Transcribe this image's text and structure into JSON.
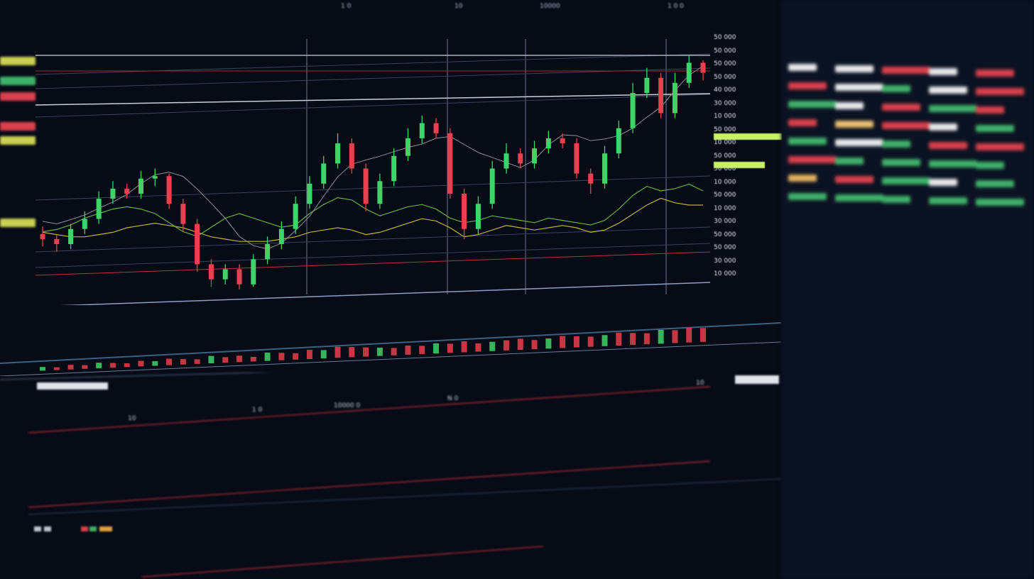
{
  "top_bar": {
    "labels": [
      "1 0",
      "10",
      "10000",
      "1 0 0"
    ]
  },
  "axis_panel": {
    "labels": [
      "50 000",
      "50 000",
      "50 000",
      "50 000",
      "40 000",
      "30 000",
      "10 000",
      "50 000",
      "10 000",
      "50 000",
      "50 000",
      "10 000",
      "50 000",
      "10 000",
      "30 000",
      "50 000",
      "50 000",
      "30 000",
      "10 000"
    ]
  },
  "lower_table": {
    "labels": [
      "10",
      "1 0",
      "10000 0",
      "N 0",
      "10"
    ]
  },
  "colors": {
    "background": "#070b16",
    "up": "#3fd46a",
    "down": "#e8404e",
    "ma": "#8a8f98",
    "oscillator": "#d4c23a",
    "oscillator2": "#6ac24a",
    "highlight": "#c8f06a"
  },
  "chart_data": {
    "type": "candlestick",
    "title": "",
    "xlabel": "",
    "ylabel": "",
    "ylim": [
      0,
      100
    ],
    "grid": true,
    "open": [
      24,
      22,
      20,
      26,
      30,
      38,
      42,
      40,
      46,
      47,
      36,
      28,
      12,
      6,
      10,
      4,
      14,
      20,
      26,
      36,
      44,
      52,
      60,
      50,
      36,
      45,
      55,
      62,
      68,
      64,
      40,
      26,
      36,
      50,
      56,
      52,
      58,
      62,
      60,
      48,
      44,
      56,
      66,
      80,
      86,
      72,
      84,
      92
    ],
    "close": [
      22,
      20,
      26,
      30,
      38,
      42,
      40,
      46,
      47,
      36,
      28,
      12,
      6,
      10,
      4,
      14,
      20,
      26,
      36,
      44,
      52,
      60,
      50,
      36,
      45,
      55,
      62,
      68,
      64,
      40,
      26,
      36,
      50,
      56,
      52,
      58,
      62,
      60,
      48,
      44,
      56,
      66,
      80,
      86,
      72,
      84,
      92,
      88
    ],
    "high": [
      27,
      24,
      28,
      33,
      41,
      45,
      44,
      49,
      50,
      48,
      38,
      30,
      14,
      12,
      12,
      16,
      23,
      29,
      39,
      47,
      55,
      64,
      62,
      52,
      48,
      58,
      66,
      71,
      70,
      66,
      42,
      39,
      53,
      60,
      58,
      61,
      65,
      64,
      62,
      50,
      59,
      69,
      84,
      90,
      88,
      88,
      95,
      93
    ],
    "low": [
      19,
      17,
      18,
      24,
      28,
      36,
      38,
      38,
      43,
      34,
      25,
      9,
      3,
      4,
      2,
      3,
      12,
      18,
      24,
      34,
      42,
      50,
      48,
      33,
      34,
      43,
      53,
      60,
      62,
      38,
      22,
      24,
      34,
      48,
      50,
      50,
      56,
      58,
      46,
      40,
      42,
      54,
      64,
      78,
      70,
      70,
      82,
      85
    ],
    "series": [
      {
        "values": [
          18,
          17,
          16,
          16,
          17,
          18,
          20,
          21,
          22,
          21,
          20,
          18,
          16,
          15,
          14,
          14,
          14,
          15,
          16,
          18,
          19,
          20,
          19,
          17,
          18,
          20,
          22,
          24,
          23,
          20,
          16,
          17,
          19,
          21,
          20,
          19,
          20,
          21,
          20,
          18,
          19,
          22,
          26,
          30,
          33,
          31,
          30,
          30
        ]
      },
      {
        "values": [
          12,
          13,
          15,
          18,
          20,
          22,
          23,
          22,
          20,
          16,
          12,
          10,
          14,
          18,
          20,
          18,
          16,
          14,
          15,
          20,
          24,
          27,
          26,
          22,
          19,
          21,
          23,
          24,
          22,
          18,
          16,
          17,
          19,
          18,
          17,
          16,
          18,
          17,
          16,
          15,
          17,
          22,
          28,
          32,
          30,
          31,
          33,
          30
        ]
      }
    ],
    "volume": [
      4,
      3,
      5,
      4,
      6,
      5,
      4,
      6,
      5,
      7,
      6,
      5,
      8,
      6,
      7,
      5,
      9,
      8,
      7,
      10,
      9,
      12,
      11,
      10,
      9,
      8,
      10,
      9,
      11,
      10,
      12,
      9,
      10,
      11,
      12,
      10,
      11,
      13,
      12,
      11,
      12,
      14,
      13,
      12,
      15,
      14,
      16,
      15
    ]
  },
  "right_panel": {
    "rows": [
      [
        "#e9e9ea",
        "#e9e9ea",
        "#d8404c",
        "#e9e9ea",
        "#d8404c"
      ],
      [
        "#d8404c",
        "#e9e9ea",
        "#3fb06a",
        "#e9e9ea",
        "#d8404c"
      ],
      [
        "#3fb06a",
        "#e9e9ea",
        "#d8404c",
        "#3fb06a",
        "#d8404c"
      ],
      [
        "#d8404c",
        "#e8c070",
        "#d8404c",
        "#e9e9ea",
        "#3fb06a"
      ],
      [
        "#3fb06a",
        "#e9e9ea",
        "#3fb06a",
        "#d8404c",
        "#d8404c"
      ],
      [
        "#d8404c",
        "#3fb06a",
        "#3fb06a",
        "#3fb06a",
        "#3fb06a"
      ],
      [
        "#e0b060",
        "#d8404c",
        "#3fb06a",
        "#e9e9ea",
        "#3fb06a"
      ],
      [
        "#3fb06a",
        "#3fb06a",
        "#3fb06a",
        "#3fb06a",
        "#3fb06a"
      ]
    ]
  }
}
